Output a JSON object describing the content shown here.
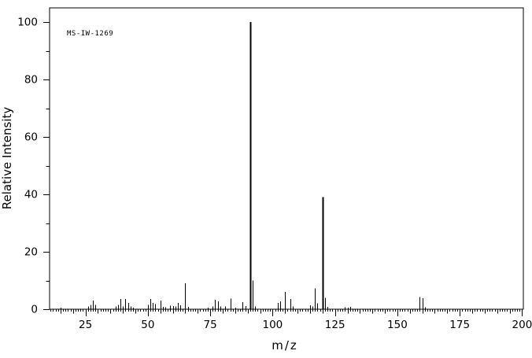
{
  "annotation": "MS-IW-1269",
  "colors": {
    "foreground": "#000000",
    "background": "#ffffff"
  },
  "chart_data": {
    "type": "bar",
    "subtype": "mass-spectrum-stick-plot",
    "title": "",
    "xlabel": "m/z",
    "ylabel": "Relative Intensity",
    "xlim": [
      10.6,
      200.5
    ],
    "ylim": [
      0,
      105
    ],
    "x_major_ticks": [
      25,
      50,
      75,
      100,
      125,
      150,
      175,
      200
    ],
    "y_major_ticks": [
      0,
      20,
      40,
      60,
      80,
      100
    ],
    "x_minor_step": 1,
    "x_medium_step": 5,
    "y_minor_step": 10,
    "grid": false,
    "legend": false,
    "peaks": [
      [
        15,
        0.6
      ],
      [
        26,
        1.0
      ],
      [
        27,
        1.5
      ],
      [
        28,
        3.0
      ],
      [
        29,
        1.5
      ],
      [
        37,
        1.0
      ],
      [
        38,
        1.5
      ],
      [
        39,
        3.5
      ],
      [
        40,
        1.0
      ],
      [
        41,
        3.5
      ],
      [
        42,
        2.2
      ],
      [
        43,
        1.0
      ],
      [
        44,
        0.6
      ],
      [
        50,
        1.5
      ],
      [
        51,
        3.5
      ],
      [
        52,
        2.2
      ],
      [
        53,
        1.8
      ],
      [
        55,
        3.0
      ],
      [
        56,
        0.8
      ],
      [
        57,
        0.7
      ],
      [
        59,
        1.3
      ],
      [
        60,
        1.1
      ],
      [
        61,
        1.0
      ],
      [
        62,
        2.2
      ],
      [
        63,
        1.4
      ],
      [
        65,
        9.0
      ],
      [
        66,
        0.8
      ],
      [
        74,
        0.6
      ],
      [
        76,
        1.0
      ],
      [
        77,
        3.3
      ],
      [
        78,
        2.7
      ],
      [
        79,
        0.9
      ],
      [
        81,
        0.9
      ],
      [
        83,
        3.7
      ],
      [
        85,
        0.5
      ],
      [
        88,
        2.5
      ],
      [
        89,
        1.1
      ],
      [
        91,
        100.0
      ],
      [
        92,
        10.0
      ],
      [
        93,
        0.9
      ],
      [
        102,
        2.2
      ],
      [
        103,
        2.7
      ],
      [
        105,
        6.0
      ],
      [
        107,
        3.6
      ],
      [
        108,
        1.0
      ],
      [
        115,
        1.4
      ],
      [
        116,
        1.0
      ],
      [
        117,
        7.2
      ],
      [
        118,
        2.0
      ],
      [
        120,
        39.0
      ],
      [
        121,
        4.0
      ],
      [
        122,
        0.8
      ],
      [
        129,
        0.7
      ],
      [
        130,
        0.6
      ],
      [
        131,
        0.8
      ],
      [
        159,
        4.3
      ],
      [
        160,
        3.8
      ],
      [
        161,
        0.7
      ]
    ]
  }
}
